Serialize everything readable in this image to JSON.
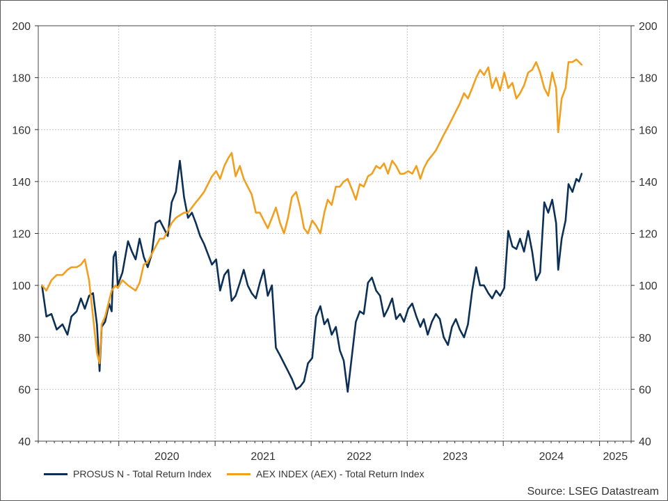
{
  "chart_data": {
    "type": "line",
    "title": "",
    "xlabel": "",
    "ylabel": "",
    "ylim": [
      40,
      200
    ],
    "yticks": [
      40,
      60,
      80,
      100,
      120,
      140,
      160,
      180,
      200
    ],
    "xlim": [
      "2019-03-01",
      "2025-05-01"
    ],
    "year_labels": [
      "2020",
      "2021",
      "2022",
      "2023",
      "2024",
      "2025"
    ],
    "grid": true,
    "axes": "both-sides",
    "legend_placement": "bottom-left",
    "source": "Source: LSEG Datastream",
    "series": [
      {
        "name": "PROSUS N - Total Return Index",
        "color": "#0b2f55",
        "points": [
          [
            "2019-03-15",
            100
          ],
          [
            "2019-04-01",
            88
          ],
          [
            "2019-04-20",
            89
          ],
          [
            "2019-05-10",
            83
          ],
          [
            "2019-06-01",
            85
          ],
          [
            "2019-06-20",
            81
          ],
          [
            "2019-07-05",
            88
          ],
          [
            "2019-07-25",
            90
          ],
          [
            "2019-08-10",
            95
          ],
          [
            "2019-08-25",
            91
          ],
          [
            "2019-09-10",
            96
          ],
          [
            "2019-09-25",
            97
          ],
          [
            "2019-10-10",
            85
          ],
          [
            "2019-10-20",
            67
          ],
          [
            "2019-10-28",
            84
          ],
          [
            "2019-11-10",
            86
          ],
          [
            "2019-11-25",
            93
          ],
          [
            "2019-12-05",
            90
          ],
          [
            "2019-12-12",
            111
          ],
          [
            "2019-12-20",
            113
          ],
          [
            "2019-12-28",
            100
          ],
          [
            "2020-01-15",
            105
          ],
          [
            "2020-02-05",
            117
          ],
          [
            "2020-02-20",
            113
          ],
          [
            "2020-03-05",
            110
          ],
          [
            "2020-03-20",
            118
          ],
          [
            "2020-04-05",
            111
          ],
          [
            "2020-04-20",
            107
          ],
          [
            "2020-05-05",
            112
          ],
          [
            "2020-05-20",
            124
          ],
          [
            "2020-06-05",
            125
          ],
          [
            "2020-06-20",
            122
          ],
          [
            "2020-07-05",
            119
          ],
          [
            "2020-07-20",
            132
          ],
          [
            "2020-08-05",
            136
          ],
          [
            "2020-08-20",
            148
          ],
          [
            "2020-09-05",
            134
          ],
          [
            "2020-09-20",
            126
          ],
          [
            "2020-10-05",
            128
          ],
          [
            "2020-10-20",
            124
          ],
          [
            "2020-11-05",
            119
          ],
          [
            "2020-11-20",
            116
          ],
          [
            "2020-12-05",
            112
          ],
          [
            "2020-12-20",
            108
          ],
          [
            "2021-01-05",
            110
          ],
          [
            "2021-01-20",
            98
          ],
          [
            "2021-02-05",
            104
          ],
          [
            "2021-02-20",
            106
          ],
          [
            "2021-03-05",
            94
          ],
          [
            "2021-03-20",
            96
          ],
          [
            "2021-04-05",
            101
          ],
          [
            "2021-04-20",
            106
          ],
          [
            "2021-05-05",
            100
          ],
          [
            "2021-05-20",
            97
          ],
          [
            "2021-06-05",
            95
          ],
          [
            "2021-06-20",
            101
          ],
          [
            "2021-07-05",
            106
          ],
          [
            "2021-07-20",
            96
          ],
          [
            "2021-08-05",
            100
          ],
          [
            "2021-08-20",
            76
          ],
          [
            "2021-09-05",
            73
          ],
          [
            "2021-09-20",
            70
          ],
          [
            "2021-10-05",
            67
          ],
          [
            "2021-10-20",
            64
          ],
          [
            "2021-11-05",
            60
          ],
          [
            "2021-11-20",
            61
          ],
          [
            "2021-12-05",
            63
          ],
          [
            "2021-12-20",
            70
          ],
          [
            "2022-01-05",
            72
          ],
          [
            "2022-01-20",
            88
          ],
          [
            "2022-02-05",
            92
          ],
          [
            "2022-02-20",
            85
          ],
          [
            "2022-03-05",
            87
          ],
          [
            "2022-03-20",
            81
          ],
          [
            "2022-04-05",
            84
          ],
          [
            "2022-04-20",
            75
          ],
          [
            "2022-05-05",
            71
          ],
          [
            "2022-05-20",
            59
          ],
          [
            "2022-06-05",
            73
          ],
          [
            "2022-06-20",
            86
          ],
          [
            "2022-07-05",
            90
          ],
          [
            "2022-07-20",
            89
          ],
          [
            "2022-08-05",
            101
          ],
          [
            "2022-08-20",
            103
          ],
          [
            "2022-09-05",
            98
          ],
          [
            "2022-09-20",
            96
          ],
          [
            "2022-10-05",
            88
          ],
          [
            "2022-10-20",
            91
          ],
          [
            "2022-11-05",
            95
          ],
          [
            "2022-11-20",
            87
          ],
          [
            "2022-12-05",
            89
          ],
          [
            "2022-12-20",
            86
          ],
          [
            "2023-01-05",
            91
          ],
          [
            "2023-01-20",
            93
          ],
          [
            "2023-02-05",
            88
          ],
          [
            "2023-02-20",
            84
          ],
          [
            "2023-03-05",
            87
          ],
          [
            "2023-03-20",
            81
          ],
          [
            "2023-04-05",
            86
          ],
          [
            "2023-04-20",
            89
          ],
          [
            "2023-05-05",
            87
          ],
          [
            "2023-05-20",
            80
          ],
          [
            "2023-06-05",
            77
          ],
          [
            "2023-06-20",
            84
          ],
          [
            "2023-07-05",
            87
          ],
          [
            "2023-07-20",
            83
          ],
          [
            "2023-08-05",
            80
          ],
          [
            "2023-08-20",
            85
          ],
          [
            "2023-09-05",
            98
          ],
          [
            "2023-09-20",
            107
          ],
          [
            "2023-10-05",
            100
          ],
          [
            "2023-10-20",
            100
          ],
          [
            "2023-11-05",
            97
          ],
          [
            "2023-11-20",
            95
          ],
          [
            "2023-12-05",
            98
          ],
          [
            "2023-12-20",
            96
          ],
          [
            "2024-01-05",
            99
          ],
          [
            "2024-01-20",
            121
          ],
          [
            "2024-02-05",
            115
          ],
          [
            "2024-02-20",
            114
          ],
          [
            "2024-03-05",
            118
          ],
          [
            "2024-03-20",
            113
          ],
          [
            "2024-04-05",
            121
          ],
          [
            "2024-04-20",
            113
          ],
          [
            "2024-05-05",
            102
          ],
          [
            "2024-05-20",
            105
          ],
          [
            "2024-06-05",
            132
          ],
          [
            "2024-06-20",
            128
          ],
          [
            "2024-07-05",
            133
          ],
          [
            "2024-07-20",
            124
          ],
          [
            "2024-07-28",
            106
          ],
          [
            "2024-08-10",
            118
          ],
          [
            "2024-08-25",
            125
          ],
          [
            "2024-09-05",
            139
          ],
          [
            "2024-09-20",
            136
          ],
          [
            "2024-10-05",
            141
          ],
          [
            "2024-10-15",
            140
          ],
          [
            "2024-10-25",
            143
          ]
        ]
      },
      {
        "name": "AEX INDEX (AEX) - Total Return Index",
        "color": "#f0a01e",
        "points": [
          [
            "2019-03-15",
            100
          ],
          [
            "2019-04-01",
            98
          ],
          [
            "2019-04-20",
            102
          ],
          [
            "2019-05-10",
            104
          ],
          [
            "2019-06-01",
            104
          ],
          [
            "2019-06-20",
            106
          ],
          [
            "2019-07-05",
            107
          ],
          [
            "2019-07-25",
            107
          ],
          [
            "2019-08-10",
            108
          ],
          [
            "2019-08-25",
            110
          ],
          [
            "2019-09-10",
            102
          ],
          [
            "2019-09-25",
            88
          ],
          [
            "2019-10-10",
            74
          ],
          [
            "2019-10-20",
            70
          ],
          [
            "2019-10-28",
            85
          ],
          [
            "2019-11-10",
            88
          ],
          [
            "2019-11-25",
            94
          ],
          [
            "2019-12-05",
            98
          ],
          [
            "2019-12-12",
            99
          ],
          [
            "2019-12-20",
            100
          ],
          [
            "2019-12-28",
            99
          ],
          [
            "2020-01-15",
            102
          ],
          [
            "2020-02-05",
            100
          ],
          [
            "2020-02-20",
            99
          ],
          [
            "2020-03-05",
            98
          ],
          [
            "2020-03-20",
            101
          ],
          [
            "2020-04-05",
            108
          ],
          [
            "2020-04-20",
            109
          ],
          [
            "2020-05-05",
            112
          ],
          [
            "2020-05-20",
            115
          ],
          [
            "2020-06-05",
            118
          ],
          [
            "2020-06-20",
            118
          ],
          [
            "2020-07-05",
            121
          ],
          [
            "2020-07-20",
            124
          ],
          [
            "2020-08-05",
            126
          ],
          [
            "2020-08-20",
            127
          ],
          [
            "2020-09-05",
            128
          ],
          [
            "2020-09-20",
            128
          ],
          [
            "2020-10-05",
            130
          ],
          [
            "2020-10-20",
            132
          ],
          [
            "2020-11-05",
            134
          ],
          [
            "2020-11-20",
            136
          ],
          [
            "2020-12-05",
            139
          ],
          [
            "2020-12-20",
            142
          ],
          [
            "2021-01-05",
            144
          ],
          [
            "2021-01-20",
            141
          ],
          [
            "2021-02-05",
            146
          ],
          [
            "2021-02-20",
            149
          ],
          [
            "2021-03-05",
            151
          ],
          [
            "2021-03-20",
            142
          ],
          [
            "2021-04-05",
            146
          ],
          [
            "2021-04-20",
            141
          ],
          [
            "2021-05-05",
            138
          ],
          [
            "2021-05-20",
            135
          ],
          [
            "2021-06-05",
            128
          ],
          [
            "2021-06-20",
            128
          ],
          [
            "2021-07-05",
            125
          ],
          [
            "2021-07-20",
            122
          ],
          [
            "2021-08-05",
            126
          ],
          [
            "2021-08-20",
            130
          ],
          [
            "2021-09-05",
            124
          ],
          [
            "2021-09-20",
            120
          ],
          [
            "2021-10-05",
            126
          ],
          [
            "2021-10-20",
            134
          ],
          [
            "2021-11-05",
            136
          ],
          [
            "2021-11-20",
            130
          ],
          [
            "2021-12-05",
            122
          ],
          [
            "2021-12-20",
            120
          ],
          [
            "2022-01-05",
            125
          ],
          [
            "2022-01-20",
            123
          ],
          [
            "2022-02-05",
            120
          ],
          [
            "2022-02-20",
            128
          ],
          [
            "2022-03-05",
            133
          ],
          [
            "2022-03-20",
            131
          ],
          [
            "2022-04-05",
            138
          ],
          [
            "2022-04-20",
            138
          ],
          [
            "2022-05-05",
            140
          ],
          [
            "2022-05-20",
            141
          ],
          [
            "2022-06-05",
            137
          ],
          [
            "2022-06-20",
            133
          ],
          [
            "2022-07-05",
            139
          ],
          [
            "2022-07-20",
            138
          ],
          [
            "2022-08-05",
            142
          ],
          [
            "2022-08-20",
            143
          ],
          [
            "2022-09-05",
            146
          ],
          [
            "2022-09-20",
            145
          ],
          [
            "2022-10-05",
            147
          ],
          [
            "2022-10-20",
            143
          ],
          [
            "2022-11-05",
            148
          ],
          [
            "2022-11-20",
            146
          ],
          [
            "2022-12-05",
            143
          ],
          [
            "2022-12-20",
            143
          ],
          [
            "2023-01-05",
            144
          ],
          [
            "2023-01-20",
            143
          ],
          [
            "2023-02-05",
            146
          ],
          [
            "2023-02-20",
            141
          ],
          [
            "2023-03-05",
            145
          ],
          [
            "2023-03-20",
            148
          ],
          [
            "2023-04-05",
            150
          ],
          [
            "2023-04-20",
            152
          ],
          [
            "2023-05-05",
            155
          ],
          [
            "2023-05-20",
            158
          ],
          [
            "2023-06-05",
            161
          ],
          [
            "2023-06-20",
            164
          ],
          [
            "2023-07-05",
            167
          ],
          [
            "2023-07-20",
            170
          ],
          [
            "2023-08-05",
            174
          ],
          [
            "2023-08-20",
            172
          ],
          [
            "2023-09-05",
            176
          ],
          [
            "2023-09-20",
            180
          ],
          [
            "2023-10-05",
            183
          ],
          [
            "2023-10-20",
            181
          ],
          [
            "2023-11-05",
            184
          ],
          [
            "2023-11-20",
            176
          ],
          [
            "2023-12-05",
            180
          ],
          [
            "2023-12-20",
            175
          ],
          [
            "2024-01-05",
            182
          ],
          [
            "2024-01-20",
            176
          ],
          [
            "2024-02-05",
            178
          ],
          [
            "2024-02-20",
            172
          ],
          [
            "2024-03-05",
            174
          ],
          [
            "2024-03-20",
            177
          ],
          [
            "2024-04-05",
            182
          ],
          [
            "2024-04-20",
            183
          ],
          [
            "2024-05-05",
            186
          ],
          [
            "2024-05-20",
            182
          ],
          [
            "2024-06-05",
            176
          ],
          [
            "2024-06-20",
            173
          ],
          [
            "2024-07-05",
            182
          ],
          [
            "2024-07-20",
            176
          ],
          [
            "2024-07-28",
            159
          ],
          [
            "2024-08-10",
            172
          ],
          [
            "2024-08-25",
            176
          ],
          [
            "2024-09-05",
            186
          ],
          [
            "2024-09-20",
            186
          ],
          [
            "2024-10-05",
            187
          ],
          [
            "2024-10-15",
            186
          ],
          [
            "2024-10-25",
            185
          ]
        ]
      }
    ]
  }
}
